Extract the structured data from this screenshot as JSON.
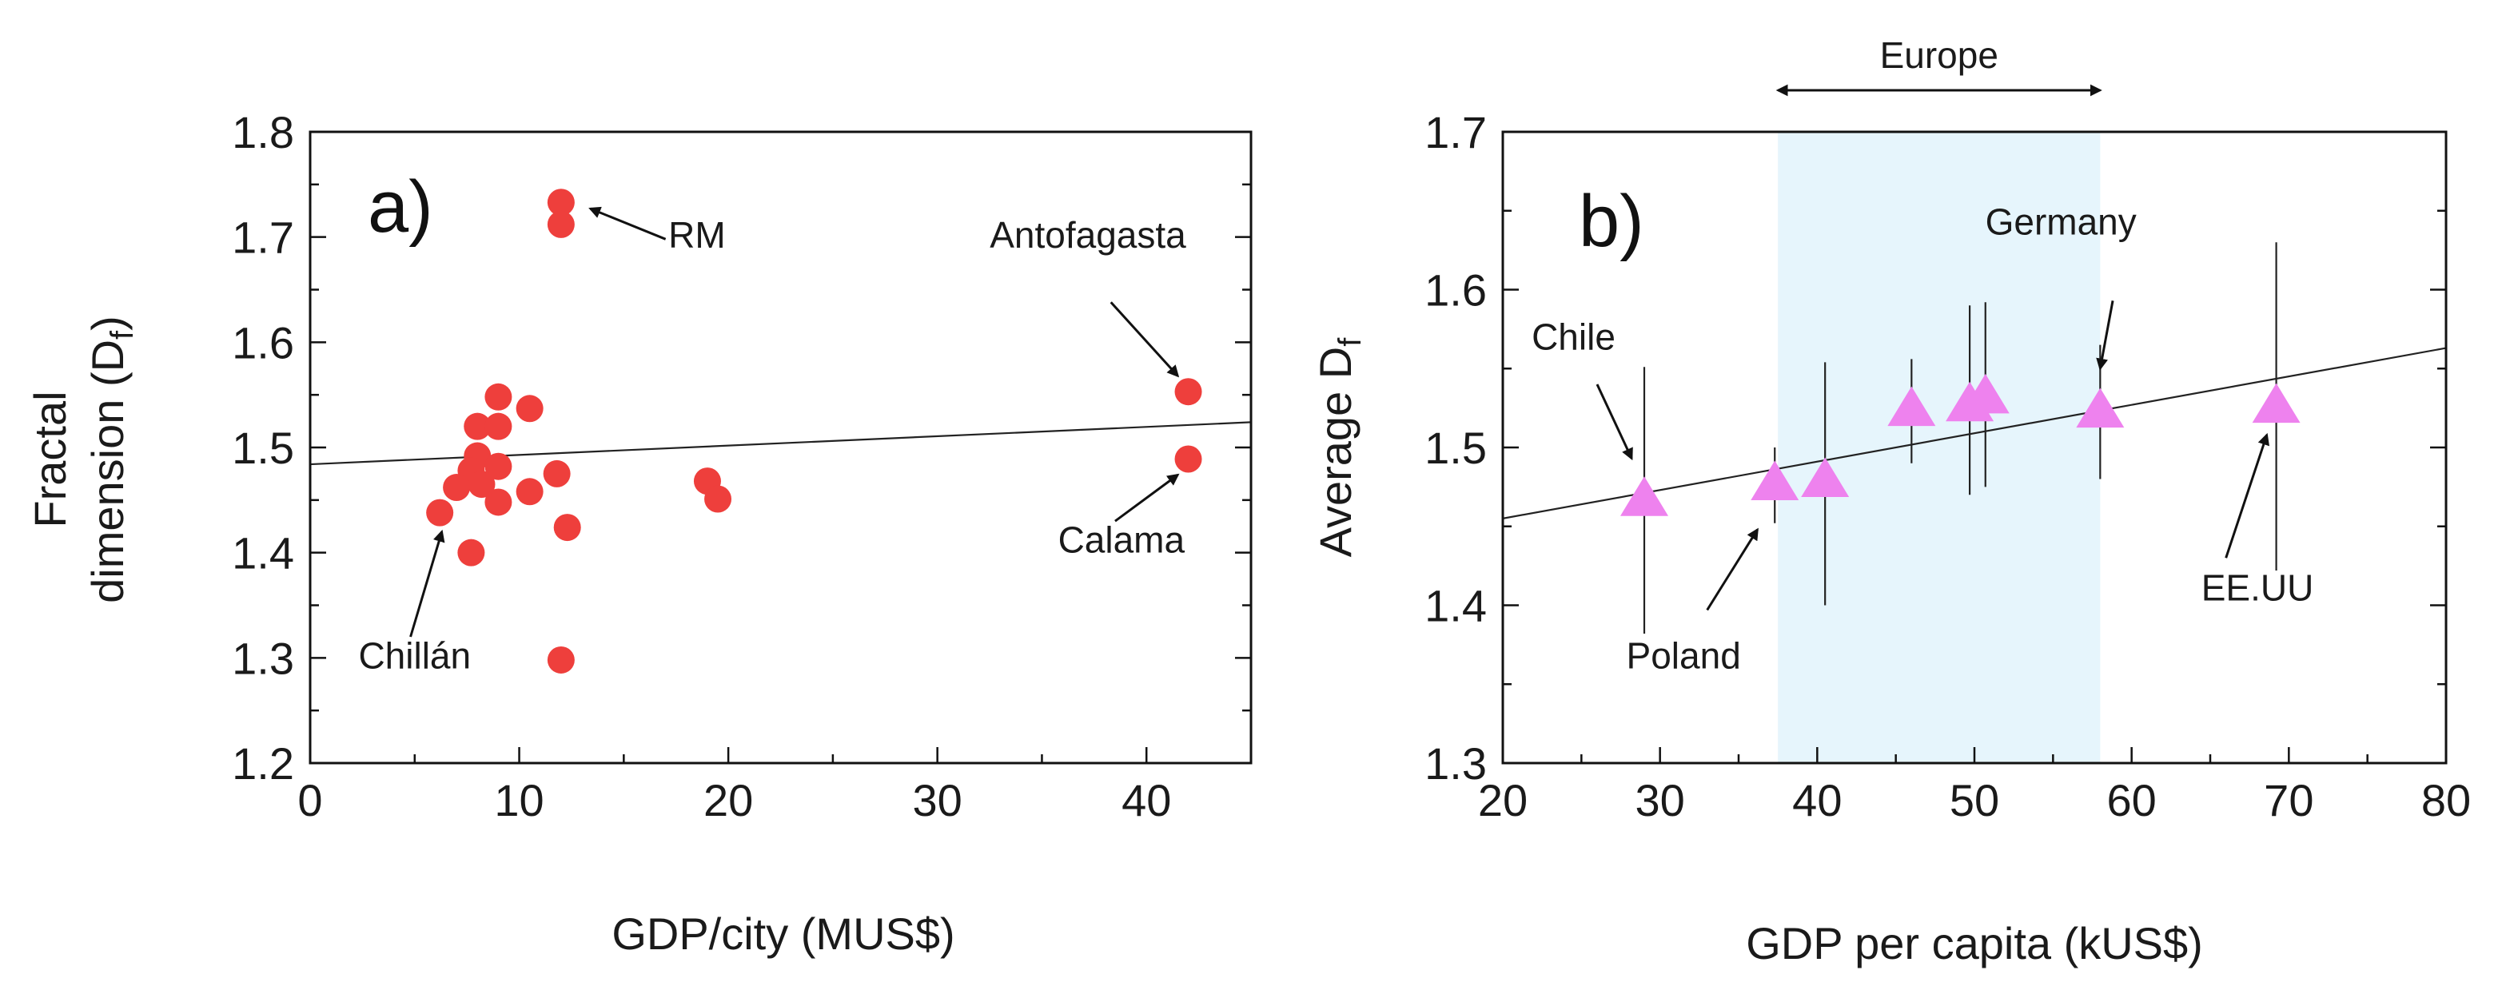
{
  "chart_data": [
    {
      "type": "scatter",
      "panel_label": "a)",
      "xlabel": "GDP/city (MUS$)",
      "ylabel_line1": "Fractal",
      "ylabel_line2_main": "dimension (D",
      "ylabel_line2_sub": "f",
      "ylabel_line2_end": ")",
      "xlim": [
        0,
        45
      ],
      "ylim": [
        1.2,
        1.8
      ],
      "xticks": [
        "0",
        "10",
        "20",
        "30",
        "40"
      ],
      "yticks": [
        "1.2",
        "1.3",
        "1.4",
        "1.5",
        "1.6",
        "1.7",
        "1.8"
      ],
      "marker_color": "#ee3f3c",
      "points": [
        {
          "x": 12.0,
          "y": 1.733
        },
        {
          "x": 12.0,
          "y": 1.712
        },
        {
          "x": 9.0,
          "y": 1.548
        },
        {
          "x": 10.5,
          "y": 1.537
        },
        {
          "x": 8.0,
          "y": 1.52
        },
        {
          "x": 9.0,
          "y": 1.52
        },
        {
          "x": 8.0,
          "y": 1.492
        },
        {
          "x": 9.0,
          "y": 1.482
        },
        {
          "x": 7.7,
          "y": 1.478
        },
        {
          "x": 11.8,
          "y": 1.475
        },
        {
          "x": 7.0,
          "y": 1.462
        },
        {
          "x": 8.2,
          "y": 1.465
        },
        {
          "x": 10.5,
          "y": 1.458
        },
        {
          "x": 9.0,
          "y": 1.448
        },
        {
          "x": 6.2,
          "y": 1.438
        },
        {
          "x": 12.3,
          "y": 1.424
        },
        {
          "x": 7.7,
          "y": 1.4
        },
        {
          "x": 12.0,
          "y": 1.298
        },
        {
          "x": 19.0,
          "y": 1.468
        },
        {
          "x": 19.5,
          "y": 1.451
        },
        {
          "x": 42.0,
          "y": 1.553
        },
        {
          "x": 42.0,
          "y": 1.489
        }
      ],
      "fit_line": {
        "x": [
          0,
          45
        ],
        "y": [
          1.484,
          1.524
        ]
      },
      "annotations": [
        {
          "text": "RM",
          "text_x": 18.5,
          "text_y": 1.69,
          "arrow_from": [
            17.0,
            1.698
          ],
          "arrow_to": [
            13.4,
            1.727
          ]
        },
        {
          "text": "Antofagasta",
          "text_x": 37.2,
          "text_y": 1.69,
          "arrow_from": [
            38.3,
            1.638
          ],
          "arrow_to": [
            41.5,
            1.568
          ]
        },
        {
          "text": "Calama",
          "text_x": 38.8,
          "text_y": 1.4,
          "arrow_from": [
            38.5,
            1.43
          ],
          "arrow_to": [
            41.5,
            1.474
          ]
        },
        {
          "text": "Chillán",
          "text_x": 5.0,
          "text_y": 1.29,
          "arrow_from": [
            4.8,
            1.32
          ],
          "arrow_to": [
            6.3,
            1.42
          ]
        }
      ]
    },
    {
      "type": "scatter",
      "panel_label": "b)",
      "xlabel": "GDP per capita (kUS$)",
      "ylabel_main": "Average D",
      "ylabel_sub": "f",
      "xlim": [
        20,
        80
      ],
      "ylim": [
        1.3,
        1.7
      ],
      "xticks": [
        "20",
        "30",
        "40",
        "50",
        "60",
        "70",
        "80"
      ],
      "yticks": [
        "1.3",
        "1.4",
        "1.5",
        "1.6",
        "1.7"
      ],
      "marker_color": "#ee82ee",
      "shaded_region": {
        "x_start": 37.5,
        "x_end": 58.0,
        "label": "Europe",
        "color": "#e6f5fc"
      },
      "points": [
        {
          "x": 29.0,
          "y": 1.468,
          "err_low": 1.382,
          "err_high": 1.551
        },
        {
          "x": 37.3,
          "y": 1.478,
          "err_low": 1.452,
          "err_high": 1.5
        },
        {
          "x": 40.5,
          "y": 1.48,
          "err_low": 1.4,
          "err_high": 1.554
        },
        {
          "x": 46.0,
          "y": 1.525,
          "err_low": 1.49,
          "err_high": 1.556
        },
        {
          "x": 49.7,
          "y": 1.528,
          "err_low": 1.47,
          "err_high": 1.59
        },
        {
          "x": 50.7,
          "y": 1.533,
          "err_low": 1.475,
          "err_high": 1.592
        },
        {
          "x": 58.0,
          "y": 1.524,
          "err_low": 1.48,
          "err_high": 1.565
        },
        {
          "x": 69.2,
          "y": 1.527,
          "err_low": 1.422,
          "err_high": 1.63
        }
      ],
      "fit_line": {
        "x": [
          20,
          80
        ],
        "y": [
          1.455,
          1.563
        ]
      },
      "annotations": [
        {
          "text": "Chile",
          "text_x": 24.5,
          "text_y": 1.562,
          "arrow_from": [
            26.0,
            1.54
          ],
          "arrow_to": [
            28.2,
            1.493
          ]
        },
        {
          "text": "Poland",
          "text_x": 31.5,
          "text_y": 1.36,
          "arrow_from": [
            33.0,
            1.397
          ],
          "arrow_to": [
            36.2,
            1.448
          ]
        },
        {
          "text": "Germany",
          "text_x": 55.5,
          "text_y": 1.635,
          "arrow_from": [
            58.8,
            1.593
          ],
          "arrow_to": [
            58.0,
            1.55
          ]
        },
        {
          "text": "EE.UU",
          "text_x": 68.0,
          "text_y": 1.403,
          "arrow_from": [
            66.0,
            1.43
          ],
          "arrow_to": [
            68.6,
            1.508
          ]
        }
      ]
    }
  ]
}
